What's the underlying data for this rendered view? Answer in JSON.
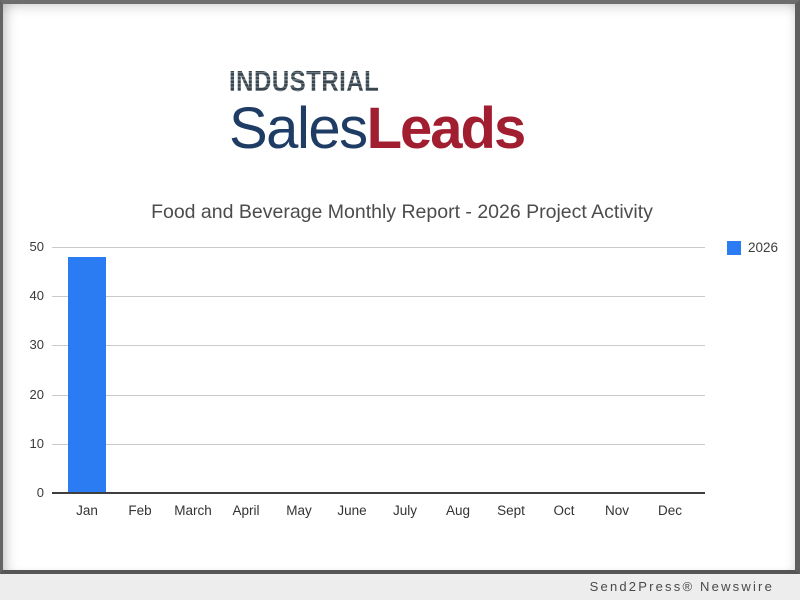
{
  "page": {
    "footer_credit": "Send2Press® Newswire"
  },
  "logo": {
    "top_word": "INDUSTRIAL",
    "word_sales": "Sales",
    "word_leads": "Leads",
    "colors": {
      "industrial": "#46555f",
      "sales": "#1e3c64",
      "leads": "#a11d30"
    }
  },
  "chart_data": {
    "type": "bar",
    "title": "Food and Beverage Monthly Report - 2026 Project Activity",
    "categories": [
      "Jan",
      "Feb",
      "March",
      "April",
      "May",
      "June",
      "July",
      "Aug",
      "Sept",
      "Oct",
      "Nov",
      "Dec"
    ],
    "series": [
      {
        "name": "2026",
        "color": "#2b7cf2",
        "values": [
          48,
          0,
          0,
          0,
          0,
          0,
          0,
          0,
          0,
          0,
          0,
          0
        ]
      }
    ],
    "xlabel": "",
    "ylabel": "",
    "ylim": [
      0,
      50
    ],
    "yticks": [
      0,
      10,
      20,
      30,
      40,
      50
    ],
    "grid": true,
    "legend_position": "top-right"
  }
}
